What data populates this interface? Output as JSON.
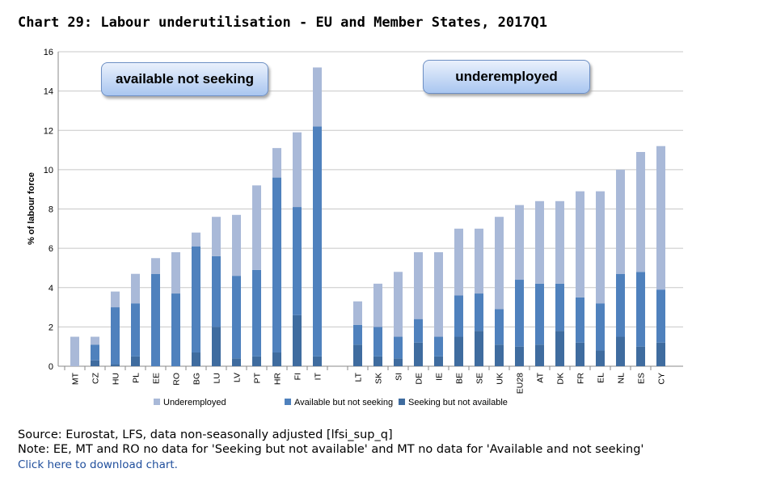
{
  "title": "Chart 29: Labour underutilisation - EU and Member States, 2017Q1",
  "annotations": [
    "available not seeking",
    "underemployed"
  ],
  "source": "Source: Eurostat, LFS, data non-seasonally adjusted [lfsi_sup_q]",
  "note": "Note: EE, MT and RO no data for 'Seeking but not available' and MT no data for 'Available and not seeking'",
  "link": "Click here to download chart.",
  "chart_data": {
    "type": "bar",
    "stacked": true,
    "ylabel": "% of labour force",
    "ylim": [
      0,
      16
    ],
    "yticks": [
      0,
      2,
      4,
      6,
      8,
      10,
      12,
      14,
      16
    ],
    "grid": true,
    "legend_position": "bottom",
    "categories": [
      "MT",
      "CZ",
      "HU",
      "PL",
      "EE",
      "RO",
      "BG",
      "LU",
      "LV",
      "PT",
      "HR",
      "FI",
      "IT",
      "",
      "LT",
      "SK",
      "SI",
      "DE",
      "IE",
      "BE",
      "SE",
      "UK",
      "EU28",
      "AT",
      "DK",
      "FR",
      "EL",
      "NL",
      "ES",
      "CY"
    ],
    "series": [
      {
        "name": "Seeking but not available",
        "color": "#3f6c9f",
        "values": [
          0,
          0.3,
          0.1,
          0.5,
          0,
          0,
          0.7,
          2.0,
          0.4,
          0.5,
          0.7,
          2.6,
          0.5,
          null,
          1.1,
          0.5,
          0.4,
          1.2,
          0.5,
          1.5,
          1.8,
          1.1,
          1.0,
          1.1,
          1.8,
          1.2,
          0.8,
          1.5,
          1.0,
          1.2
        ]
      },
      {
        "name": "Available but not seeking",
        "color": "#4f81bd",
        "values": [
          0,
          0.8,
          2.9,
          2.7,
          4.7,
          3.7,
          5.4,
          3.6,
          4.2,
          4.4,
          8.9,
          5.5,
          11.7,
          null,
          1.0,
          1.5,
          1.1,
          1.2,
          1.0,
          2.1,
          1.9,
          1.8,
          3.4,
          3.1,
          2.4,
          2.3,
          2.4,
          3.2,
          3.8,
          2.7
        ]
      },
      {
        "name": "Underemployed",
        "color": "#a9b9d8",
        "values": [
          1.5,
          0.4,
          0.8,
          1.5,
          0.8,
          2.1,
          0.7,
          2.0,
          3.1,
          4.3,
          1.5,
          3.8,
          3.0,
          null,
          1.2,
          2.2,
          3.3,
          3.4,
          4.3,
          3.4,
          3.3,
          4.7,
          3.8,
          4.2,
          4.2,
          5.4,
          5.7,
          5.3,
          6.1,
          7.3
        ]
      }
    ],
    "legend_order": [
      "Underemployed",
      "Available but not seeking",
      "Seeking but not available"
    ]
  }
}
